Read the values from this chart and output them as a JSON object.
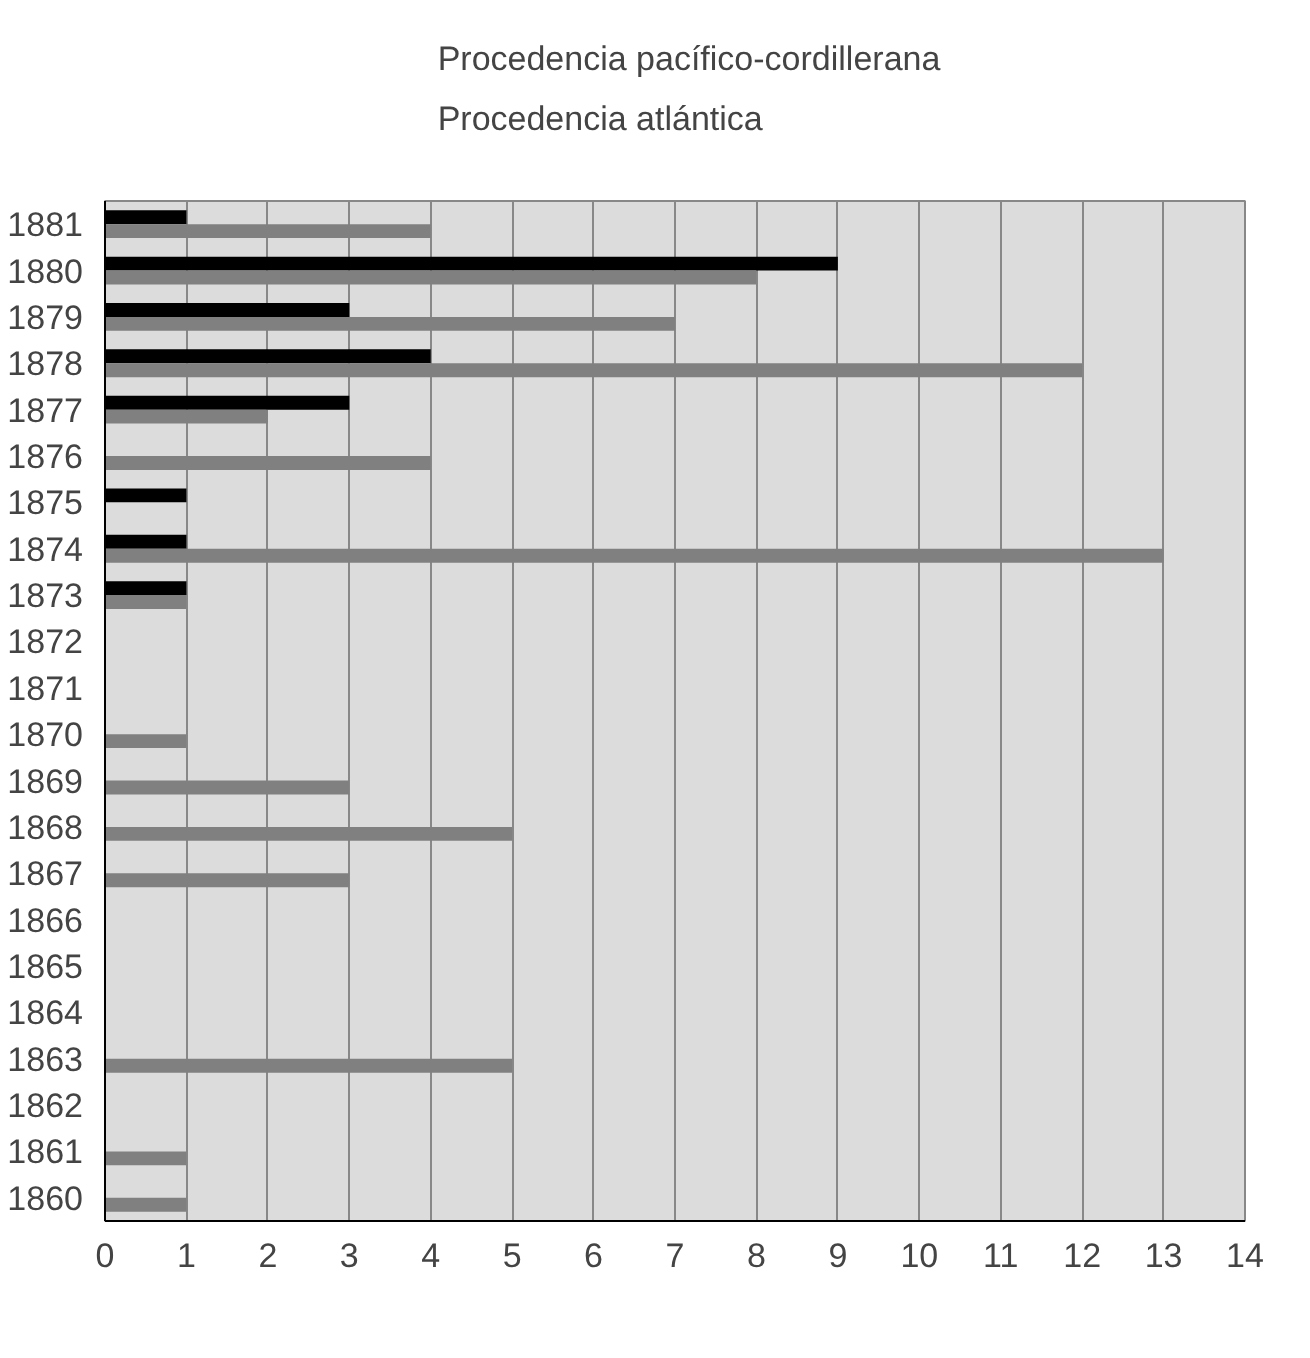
{
  "chart_data": {
    "type": "bar",
    "orientation": "horizontal",
    "categories": [
      "1881",
      "1880",
      "1879",
      "1878",
      "1877",
      "1876",
      "1875",
      "1874",
      "1873",
      "1872",
      "1871",
      "1870",
      "1869",
      "1868",
      "1867",
      "1866",
      "1865",
      "1864",
      "1863",
      "1862",
      "1861",
      "1860"
    ],
    "series": [
      {
        "name": "Procedencia pacífico-cordillerana",
        "color": "#000000",
        "values": [
          1,
          9,
          3,
          4,
          3,
          null,
          1,
          1,
          1,
          null,
          null,
          null,
          null,
          null,
          null,
          null,
          null,
          null,
          null,
          null,
          null,
          null
        ]
      },
      {
        "name": "Procedencia atlántica",
        "color": "#808080",
        "values": [
          4,
          8,
          7,
          12,
          2,
          4,
          null,
          13,
          1,
          null,
          null,
          1,
          3,
          5,
          3,
          null,
          null,
          null,
          5,
          null,
          1,
          1
        ]
      }
    ],
    "xlim": [
      0,
      14
    ],
    "xticks": [
      0,
      1,
      2,
      3,
      4,
      5,
      6,
      7,
      8,
      9,
      10,
      11,
      12,
      13,
      14
    ],
    "grid": "x",
    "legend": "top"
  }
}
